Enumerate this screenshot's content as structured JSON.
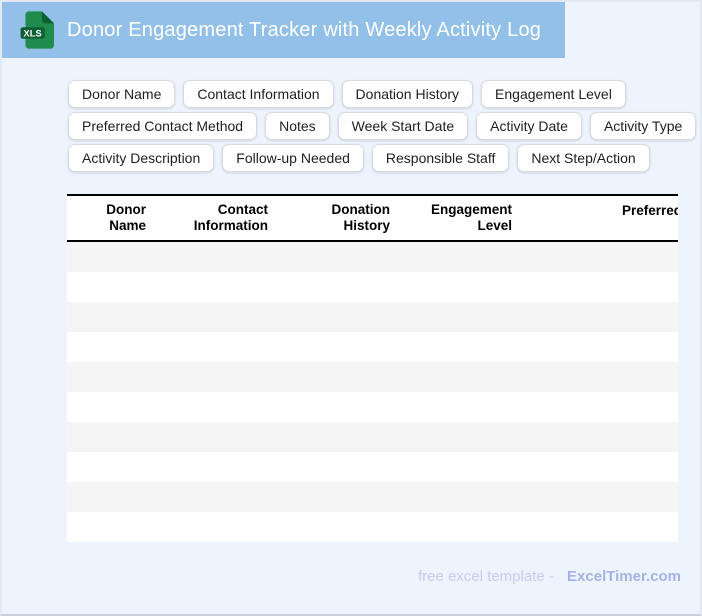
{
  "titlebar": {
    "title": "Donor Engagement Tracker with Weekly Activity Log",
    "file_icon_label": "XLS"
  },
  "chips": {
    "rows": [
      {
        "items": [
          "Donor Name",
          "Contact Information",
          "Donation History",
          "Engagement Level"
        ]
      },
      {
        "items": [
          "Preferred Contact Method",
          "Notes",
          "Week Start Date",
          "Activity Date",
          "Activity Type"
        ]
      },
      {
        "items": [
          "Activity Description",
          "Follow-up Needed",
          "Responsible Staff",
          "Next Step/Action"
        ]
      }
    ]
  },
  "table": {
    "columns": [
      {
        "line1": "Donor",
        "line2": "Name"
      },
      {
        "line1": "Contact",
        "line2": "Information"
      },
      {
        "line1": "Donation",
        "line2": "History"
      },
      {
        "line1": "Engagement",
        "line2": "Level"
      },
      {
        "line1": "Preferred",
        "line2": ""
      }
    ],
    "row_count": 10
  },
  "footer": {
    "prefix": "free excel template -",
    "brand": "ExcelTimer.com"
  },
  "colors": {
    "titlebar_bg": "#92c0e9",
    "page_bg": "#eef4fd",
    "icon_body_green": "#1f8b4d",
    "icon_fold_green": "#0c6031",
    "icon_badge_green": "#0e5f33",
    "row_stripe": "#f5f5f5",
    "header_border": "#000000",
    "footer_prefix": "#c4cdf0",
    "footer_brand": "#a5b2e7"
  }
}
